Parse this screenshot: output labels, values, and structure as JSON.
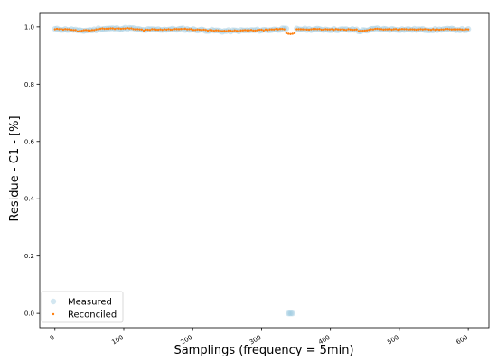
{
  "chart_data": {
    "type": "scatter",
    "xlabel": "Samplings (frequency = 5min)",
    "ylabel": "Residue -  C1 - [%]",
    "xlim": [
      -22,
      630
    ],
    "ylim": [
      -0.05,
      1.05
    ],
    "xticks": [
      0,
      100,
      200,
      300,
      400,
      500,
      600
    ],
    "yticks": [
      0.0,
      0.2,
      0.4,
      0.6,
      0.8,
      1.0
    ],
    "xtick_labels": [
      "0",
      "100",
      "200",
      "300",
      "400",
      "500",
      "600"
    ],
    "ytick_labels": [
      "0.0",
      "0.2",
      "0.4",
      "0.6",
      "0.8",
      "1.0"
    ],
    "xtick_rotation_deg": 30,
    "grid": false,
    "legend_position": "lower-left",
    "series": [
      {
        "name": "Measured",
        "color": "#9ecae1",
        "marker": "circle-faded",
        "points": {
          "x_start": 0,
          "x_end": 600,
          "x_step": 3,
          "baseline": 0.991,
          "segments": [
            {
              "x": [
                0,
                30
              ],
              "y": [
                0.992,
                0.99
              ]
            },
            {
              "x": [
                30,
                60
              ],
              "y": [
                0.985,
                0.99
              ]
            },
            {
              "x": [
                60,
                110
              ],
              "y": [
                0.993,
                0.995
              ]
            },
            {
              "x": [
                110,
                130
              ],
              "y": [
                0.995,
                0.988
              ]
            },
            {
              "x": [
                130,
                180
              ],
              "y": [
                0.99,
                0.992
              ]
            },
            {
              "x": [
                180,
                240
              ],
              "y": [
                0.993,
                0.986
              ]
            },
            {
              "x": [
                240,
                320
              ],
              "y": [
                0.985,
                0.99
              ]
            },
            {
              "x": [
                320,
                336
              ],
              "y": [
                0.992,
                0.992
              ]
            },
            {
              "x": [
                349,
                440
              ],
              "y": [
                0.992,
                0.99
              ]
            },
            {
              "x": [
                440,
                470
              ],
              "y": [
                0.985,
                0.994
              ]
            },
            {
              "x": [
                470,
                560
              ],
              "y": [
                0.992,
                0.99
              ]
            },
            {
              "x": [
                560,
                600
              ],
              "y": [
                0.992,
                0.99
              ]
            }
          ],
          "outliers": [
            {
              "x": 339,
              "y": 0.0
            },
            {
              "x": 341,
              "y": 0.0
            },
            {
              "x": 343,
              "y": 0.0
            },
            {
              "x": 345,
              "y": 0.0
            }
          ]
        }
      },
      {
        "name": "Reconciled",
        "color": "#ff7f0e",
        "marker": "dot",
        "points": {
          "x_start": 0,
          "x_end": 600,
          "x_step": 3,
          "baseline": 0.991,
          "dip": [
            {
              "x": 336,
              "y": 0.978
            },
            {
              "x": 339,
              "y": 0.976
            },
            {
              "x": 342,
              "y": 0.975
            },
            {
              "x": 345,
              "y": 0.976
            },
            {
              "x": 348,
              "y": 0.978
            }
          ]
        }
      }
    ]
  }
}
